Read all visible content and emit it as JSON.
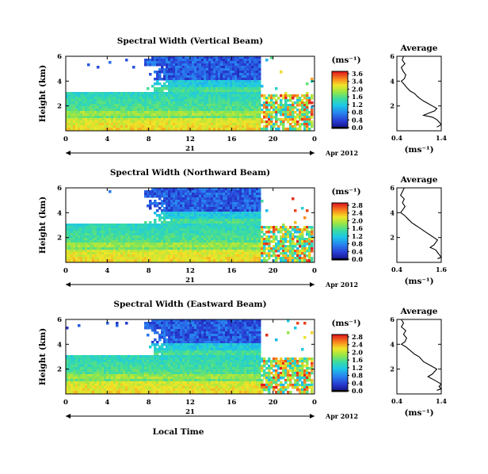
{
  "figure": {
    "xlabel": "Local Time",
    "ylabel": "Height (km)",
    "date_day": "21",
    "date_label": "Apr 2012",
    "unit_label": "(ms⁻¹)",
    "average_title": "Average",
    "x_ticks": [
      "0",
      "4",
      "8",
      "12",
      "16",
      "20",
      "0"
    ],
    "y_ticks": [
      "6",
      "4",
      "2"
    ]
  },
  "chart_data": [
    {
      "type": "heatmap",
      "title": "Spectral Width (Vertical Beam)",
      "xlabel": "Local Time",
      "ylabel": "Height (km)",
      "x_range": [
        0,
        24
      ],
      "y_range": [
        0,
        6
      ],
      "colorbar": {
        "label": "(ms⁻¹)",
        "ticks": [
          "3.6",
          "3.4",
          "2.0",
          "1.6",
          "1.2",
          "0.8",
          "0.4",
          "0.0"
        ],
        "range": [
          0,
          3.6
        ]
      },
      "average_profile": {
        "title": "Average",
        "xlabel": "(ms⁻¹)",
        "x_ticks": [
          "0.4",
          "1.4"
        ],
        "xlim": [
          0.4,
          1.4
        ],
        "y_ticks": [
          "6",
          "4",
          "2"
        ],
        "ylim": [
          0,
          6
        ],
        "points": [
          [
            0.55,
            6.0
          ],
          [
            0.52,
            5.7
          ],
          [
            0.58,
            5.4
          ],
          [
            0.5,
            5.1
          ],
          [
            0.54,
            4.8
          ],
          [
            0.6,
            4.5
          ],
          [
            0.57,
            4.2
          ],
          [
            0.5,
            4.0
          ],
          [
            0.55,
            3.8
          ],
          [
            0.62,
            3.5
          ],
          [
            0.7,
            3.2
          ],
          [
            0.8,
            3.0
          ],
          [
            0.85,
            2.8
          ],
          [
            0.92,
            2.6
          ],
          [
            1.0,
            2.4
          ],
          [
            1.1,
            2.2
          ],
          [
            1.2,
            2.0
          ],
          [
            1.3,
            1.8
          ],
          [
            1.25,
            1.6
          ],
          [
            1.1,
            1.4
          ],
          [
            1.0,
            1.25
          ],
          [
            1.2,
            1.1
          ],
          [
            1.3,
            0.9
          ],
          [
            1.35,
            0.7
          ],
          [
            1.4,
            0.5
          ],
          [
            1.3,
            0.3
          ]
        ]
      }
    },
    {
      "type": "heatmap",
      "title": "Spectral Width (Northward Beam)",
      "xlabel": "Local Time",
      "ylabel": "Height (km)",
      "x_range": [
        0,
        24
      ],
      "y_range": [
        0,
        6
      ],
      "colorbar": {
        "label": "(ms⁻¹)",
        "ticks": [
          "2.8",
          "2.4",
          "2.0",
          "1.6",
          "1.2",
          "0.8",
          "0.4",
          "0.0"
        ],
        "range": [
          0,
          2.8
        ]
      },
      "average_profile": {
        "title": "Average",
        "xlabel": "(ms⁻¹)",
        "x_ticks": [
          "0.4",
          "1.6"
        ],
        "xlim": [
          0.4,
          1.6
        ],
        "y_ticks": [
          "6",
          "4",
          "2"
        ],
        "ylim": [
          0,
          6
        ],
        "points": [
          [
            0.6,
            6.0
          ],
          [
            0.55,
            5.7
          ],
          [
            0.5,
            5.4
          ],
          [
            0.6,
            5.1
          ],
          [
            0.55,
            4.8
          ],
          [
            0.62,
            4.5
          ],
          [
            0.55,
            4.2
          ],
          [
            0.5,
            4.0
          ],
          [
            0.6,
            3.8
          ],
          [
            0.7,
            3.5
          ],
          [
            0.8,
            3.2
          ],
          [
            0.9,
            3.0
          ],
          [
            1.0,
            2.8
          ],
          [
            1.1,
            2.6
          ],
          [
            1.2,
            2.4
          ],
          [
            1.3,
            2.2
          ],
          [
            1.4,
            2.0
          ],
          [
            1.5,
            1.8
          ],
          [
            1.45,
            1.6
          ],
          [
            1.4,
            1.4
          ],
          [
            1.3,
            1.2
          ],
          [
            1.45,
            1.0
          ],
          [
            1.5,
            0.8
          ],
          [
            1.55,
            0.6
          ],
          [
            1.6,
            0.4
          ],
          [
            1.5,
            0.3
          ]
        ]
      }
    },
    {
      "type": "heatmap",
      "title": "Spectral Width (Eastward Beam)",
      "xlabel": "Local Time",
      "ylabel": "Height (km)",
      "x_range": [
        0,
        24
      ],
      "y_range": [
        0,
        6
      ],
      "colorbar": {
        "label": "(ms⁻¹)",
        "ticks": [
          "2.8",
          "2.4",
          "2.0",
          "1.6",
          "1.2",
          "0.8",
          "0.4",
          "0.0"
        ],
        "range": [
          0,
          2.8
        ]
      },
      "average_profile": {
        "title": "Average",
        "xlabel": "(ms⁻¹)",
        "x_ticks": [
          "0.4",
          "1.4"
        ],
        "xlim": [
          0.4,
          1.4
        ],
        "y_ticks": [
          "6",
          "4",
          "2"
        ],
        "ylim": [
          0,
          6
        ],
        "points": [
          [
            0.5,
            6.0
          ],
          [
            0.55,
            5.7
          ],
          [
            0.5,
            5.4
          ],
          [
            0.6,
            5.1
          ],
          [
            0.55,
            4.8
          ],
          [
            0.62,
            4.5
          ],
          [
            0.58,
            4.2
          ],
          [
            0.5,
            4.0
          ],
          [
            0.6,
            3.8
          ],
          [
            0.7,
            3.5
          ],
          [
            0.8,
            3.2
          ],
          [
            0.9,
            3.0
          ],
          [
            0.95,
            2.8
          ],
          [
            1.0,
            2.6
          ],
          [
            1.1,
            2.4
          ],
          [
            1.2,
            2.2
          ],
          [
            1.3,
            2.0
          ],
          [
            1.25,
            1.8
          ],
          [
            1.2,
            1.6
          ],
          [
            1.1,
            1.4
          ],
          [
            1.2,
            1.2
          ],
          [
            1.3,
            1.0
          ],
          [
            1.4,
            0.8
          ],
          [
            1.35,
            0.6
          ],
          [
            1.4,
            0.4
          ],
          [
            1.3,
            0.3
          ]
        ]
      }
    }
  ]
}
